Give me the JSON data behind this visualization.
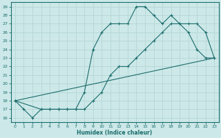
{
  "xlabel": "Humidex (Indice chaleur)",
  "ylabel": "",
  "xlim": [
    -0.5,
    23.5
  ],
  "ylim": [
    15.5,
    29.5
  ],
  "xticks": [
    0,
    1,
    2,
    3,
    4,
    5,
    6,
    7,
    8,
    9,
    10,
    11,
    12,
    13,
    14,
    15,
    16,
    17,
    18,
    19,
    20,
    21,
    22,
    23
  ],
  "yticks": [
    16,
    17,
    18,
    19,
    20,
    21,
    22,
    23,
    24,
    25,
    26,
    27,
    28,
    29
  ],
  "bg_color": "#cce8e8",
  "line_color": "#1a6b6b",
  "grid_color": "#b8d8d8",
  "line1_x": [
    0,
    1,
    2,
    3,
    4,
    5,
    6,
    7,
    8,
    9,
    10,
    11,
    12,
    13,
    14,
    15,
    16,
    17,
    18,
    19,
    20,
    21,
    22,
    23
  ],
  "line1_y": [
    18,
    17,
    16,
    17,
    17,
    17,
    17,
    17,
    19,
    24,
    26,
    27,
    27,
    27,
    29,
    29,
    28,
    27,
    28,
    27,
    26,
    24,
    23,
    23
  ],
  "line2_x": [
    0,
    3,
    4,
    5,
    6,
    7,
    8,
    9,
    10,
    11,
    12,
    13,
    14,
    15,
    16,
    17,
    18,
    19,
    20,
    21,
    22,
    23
  ],
  "line2_y": [
    18,
    17,
    17,
    17,
    17,
    17,
    17,
    18,
    19,
    21,
    22,
    22,
    23,
    24,
    25,
    26,
    27,
    27,
    27,
    27,
    26,
    23
  ],
  "line3_x": [
    0,
    23
  ],
  "line3_y": [
    18,
    23
  ]
}
